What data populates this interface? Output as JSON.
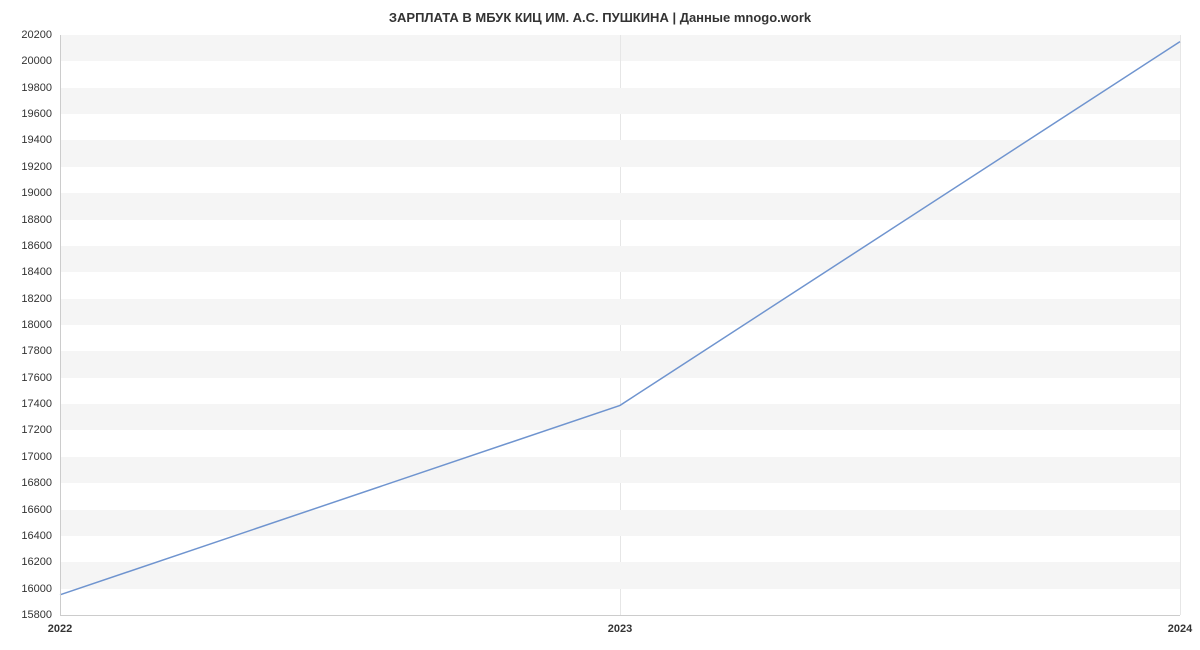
{
  "chart": {
    "type": "line",
    "title": "ЗАРПЛАТА В МБУК КИЦ ИМ. А.С. ПУШКИНА | Данные mnogo.work",
    "title_fontsize": 13,
    "title_color": "#333333",
    "background_color": "#ffffff",
    "plot_band_color": "#f5f5f5",
    "grid_color": "#e6e6e6",
    "axis_line_color": "#cccccc",
    "line_color": "#6f94cf",
    "line_width": 1.5,
    "label_color": "#333333",
    "y_label_fontsize": 11,
    "x_label_fontsize": 11,
    "x_values": [
      2022,
      2023,
      2024
    ],
    "y_values": [
      15953,
      17390,
      20150
    ],
    "xlim": [
      2022,
      2024
    ],
    "ylim": [
      15800,
      20200
    ],
    "y_ticks": [
      15800,
      16000,
      16200,
      16400,
      16600,
      16800,
      17000,
      17200,
      17400,
      17600,
      17800,
      18000,
      18200,
      18400,
      18600,
      18800,
      19000,
      19200,
      19400,
      19600,
      19800,
      20000,
      20200
    ],
    "x_ticks": [
      2022,
      2023,
      2024
    ],
    "x_tick_labels": [
      "2022",
      "2023",
      "2024"
    ]
  }
}
